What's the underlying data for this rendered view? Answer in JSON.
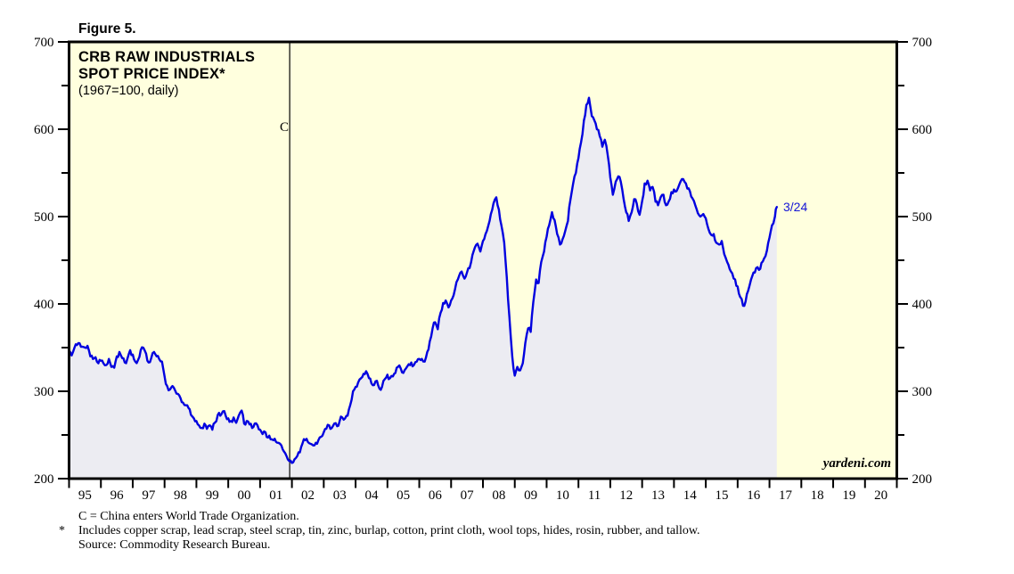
{
  "figure_label": "Figure 5.",
  "watermark": "yardeni.com",
  "footnotes": {
    "line1": "C = China enters World Trade Organization.",
    "line2_marker": "*",
    "line2": "Includes copper scrap, lead scrap, steel scrap, tin, zinc, burlap, cotton, print cloth, wool tops, hides, rosin, rubber, and tallow.",
    "line3": "Source: Commodity Research Bureau."
  },
  "colors": {
    "plot_bg": "#FFFFDE",
    "area_fill": "#ECECF2",
    "line": "#0202DF",
    "axis": "#000000",
    "end_label_text": "#1515D6"
  },
  "chart_data": {
    "type": "line",
    "title_lines": [
      "CRB RAW INDUSTRIALS",
      "SPOT PRICE INDEX*"
    ],
    "subtitle": "(1967=100, daily)",
    "ylim": [
      200,
      700
    ],
    "y_major_ticks": [
      200,
      300,
      400,
      500,
      600,
      700
    ],
    "y_minor_ticks": [
      250,
      350,
      450,
      550,
      650
    ],
    "x_axis": {
      "start": 1995,
      "end": 2021
    },
    "x_tick_labels": [
      "95",
      "96",
      "97",
      "98",
      "99",
      "00",
      "01",
      "02",
      "03",
      "04",
      "05",
      "06",
      "07",
      "08",
      "09",
      "10",
      "11",
      "12",
      "13",
      "14",
      "15",
      "16",
      "17",
      "18",
      "19",
      "20"
    ],
    "grid": false,
    "legend": "none",
    "annotation": {
      "label": "C",
      "year": 2001.93,
      "meaning": "China enters World Trade Organization"
    },
    "end_point": {
      "label": "3/24",
      "year": 2017.23,
      "value": 511
    },
    "series": [
      {
        "name": "CRB Raw Industrials Spot Price Index",
        "points": [
          [
            1995.0,
            347
          ],
          [
            1995.08,
            341
          ],
          [
            1995.17,
            350
          ],
          [
            1995.25,
            353
          ],
          [
            1995.33,
            355
          ],
          [
            1995.42,
            351
          ],
          [
            1995.5,
            350
          ],
          [
            1995.58,
            352
          ],
          [
            1995.67,
            340
          ],
          [
            1995.75,
            337
          ],
          [
            1995.83,
            339
          ],
          [
            1995.92,
            332
          ],
          [
            1996.0,
            335
          ],
          [
            1996.08,
            332
          ],
          [
            1996.17,
            330
          ],
          [
            1996.25,
            337
          ],
          [
            1996.33,
            328
          ],
          [
            1996.42,
            327
          ],
          [
            1996.5,
            340
          ],
          [
            1996.58,
            345
          ],
          [
            1996.67,
            338
          ],
          [
            1996.75,
            333
          ],
          [
            1996.83,
            337
          ],
          [
            1996.92,
            347
          ],
          [
            1997.0,
            342
          ],
          [
            1997.08,
            334
          ],
          [
            1997.17,
            336
          ],
          [
            1997.25,
            347
          ],
          [
            1997.33,
            350
          ],
          [
            1997.42,
            343
          ],
          [
            1997.5,
            333
          ],
          [
            1997.58,
            338
          ],
          [
            1997.67,
            345
          ],
          [
            1997.75,
            340
          ],
          [
            1997.83,
            337
          ],
          [
            1997.92,
            334
          ],
          [
            1998.0,
            317
          ],
          [
            1998.08,
            306
          ],
          [
            1998.17,
            302
          ],
          [
            1998.25,
            306
          ],
          [
            1998.33,
            301
          ],
          [
            1998.42,
            297
          ],
          [
            1998.5,
            292
          ],
          [
            1998.58,
            287
          ],
          [
            1998.67,
            284
          ],
          [
            1998.75,
            281
          ],
          [
            1998.83,
            273
          ],
          [
            1998.92,
            269
          ],
          [
            1999.0,
            266
          ],
          [
            1999.08,
            261
          ],
          [
            1999.17,
            258
          ],
          [
            1999.25,
            263
          ],
          [
            1999.33,
            257
          ],
          [
            1999.42,
            261
          ],
          [
            1999.5,
            256
          ],
          [
            1999.58,
            264
          ],
          [
            1999.67,
            273
          ],
          [
            1999.75,
            272
          ],
          [
            1999.83,
            277
          ],
          [
            1999.92,
            272
          ],
          [
            2000.0,
            269
          ],
          [
            2000.08,
            266
          ],
          [
            2000.17,
            270
          ],
          [
            2000.25,
            264
          ],
          [
            2000.33,
            272
          ],
          [
            2000.42,
            278
          ],
          [
            2000.5,
            263
          ],
          [
            2000.58,
            266
          ],
          [
            2000.67,
            262
          ],
          [
            2000.75,
            258
          ],
          [
            2000.83,
            263
          ],
          [
            2000.92,
            261
          ],
          [
            2001.0,
            256
          ],
          [
            2001.08,
            251
          ],
          [
            2001.17,
            253
          ],
          [
            2001.25,
            247
          ],
          [
            2001.33,
            245
          ],
          [
            2001.42,
            244
          ],
          [
            2001.5,
            242
          ],
          [
            2001.58,
            241
          ],
          [
            2001.67,
            238
          ],
          [
            2001.75,
            231
          ],
          [
            2001.83,
            226
          ],
          [
            2001.92,
            220
          ],
          [
            2002.0,
            218
          ],
          [
            2002.08,
            222
          ],
          [
            2002.17,
            226
          ],
          [
            2002.25,
            230
          ],
          [
            2002.33,
            240
          ],
          [
            2002.42,
            244
          ],
          [
            2002.5,
            242
          ],
          [
            2002.58,
            240
          ],
          [
            2002.67,
            238
          ],
          [
            2002.75,
            241
          ],
          [
            2002.83,
            244
          ],
          [
            2002.92,
            248
          ],
          [
            2003.0,
            253
          ],
          [
            2003.08,
            257
          ],
          [
            2003.17,
            261
          ],
          [
            2003.25,
            258
          ],
          [
            2003.33,
            263
          ],
          [
            2003.42,
            260
          ],
          [
            2003.5,
            266
          ],
          [
            2003.58,
            270
          ],
          [
            2003.67,
            269
          ],
          [
            2003.75,
            272
          ],
          [
            2003.83,
            284
          ],
          [
            2003.92,
            300
          ],
          [
            2004.0,
            305
          ],
          [
            2004.08,
            310
          ],
          [
            2004.17,
            315
          ],
          [
            2004.25,
            320
          ],
          [
            2004.33,
            323
          ],
          [
            2004.42,
            315
          ],
          [
            2004.5,
            309
          ],
          [
            2004.58,
            307
          ],
          [
            2004.67,
            312
          ],
          [
            2004.75,
            303
          ],
          [
            2004.83,
            305
          ],
          [
            2004.92,
            314
          ],
          [
            2005.0,
            319
          ],
          [
            2005.08,
            315
          ],
          [
            2005.17,
            317
          ],
          [
            2005.25,
            321
          ],
          [
            2005.33,
            328
          ],
          [
            2005.42,
            326
          ],
          [
            2005.5,
            321
          ],
          [
            2005.58,
            326
          ],
          [
            2005.67,
            331
          ],
          [
            2005.75,
            333
          ],
          [
            2005.83,
            330
          ],
          [
            2005.92,
            334
          ],
          [
            2006.0,
            337
          ],
          [
            2006.08,
            337
          ],
          [
            2006.17,
            334
          ],
          [
            2006.25,
            345
          ],
          [
            2006.33,
            357
          ],
          [
            2006.42,
            372
          ],
          [
            2006.5,
            379
          ],
          [
            2006.58,
            371
          ],
          [
            2006.67,
            390
          ],
          [
            2006.75,
            401
          ],
          [
            2006.83,
            404
          ],
          [
            2006.92,
            396
          ],
          [
            2007.0,
            404
          ],
          [
            2007.08,
            410
          ],
          [
            2007.17,
            425
          ],
          [
            2007.25,
            432
          ],
          [
            2007.33,
            437
          ],
          [
            2007.42,
            429
          ],
          [
            2007.5,
            436
          ],
          [
            2007.58,
            441
          ],
          [
            2007.67,
            456
          ],
          [
            2007.75,
            465
          ],
          [
            2007.83,
            469
          ],
          [
            2007.92,
            460
          ],
          [
            2008.0,
            472
          ],
          [
            2008.08,
            480
          ],
          [
            2008.17,
            490
          ],
          [
            2008.25,
            503
          ],
          [
            2008.33,
            515
          ],
          [
            2008.42,
            522
          ],
          [
            2008.5,
            508
          ],
          [
            2008.58,
            490
          ],
          [
            2008.67,
            470
          ],
          [
            2008.75,
            430
          ],
          [
            2008.83,
            385
          ],
          [
            2008.92,
            340
          ],
          [
            2009.0,
            318
          ],
          [
            2009.08,
            328
          ],
          [
            2009.17,
            324
          ],
          [
            2009.25,
            332
          ],
          [
            2009.33,
            355
          ],
          [
            2009.42,
            372
          ],
          [
            2009.5,
            368
          ],
          [
            2009.58,
            402
          ],
          [
            2009.67,
            428
          ],
          [
            2009.75,
            424
          ],
          [
            2009.83,
            448
          ],
          [
            2009.92,
            460
          ],
          [
            2010.0,
            477
          ],
          [
            2010.08,
            490
          ],
          [
            2010.17,
            505
          ],
          [
            2010.25,
            496
          ],
          [
            2010.33,
            480
          ],
          [
            2010.42,
            468
          ],
          [
            2010.5,
            474
          ],
          [
            2010.58,
            483
          ],
          [
            2010.67,
            495
          ],
          [
            2010.75,
            520
          ],
          [
            2010.83,
            537
          ],
          [
            2010.92,
            550
          ],
          [
            2011.0,
            567
          ],
          [
            2011.08,
            585
          ],
          [
            2011.17,
            610
          ],
          [
            2011.25,
            628
          ],
          [
            2011.33,
            636
          ],
          [
            2011.42,
            615
          ],
          [
            2011.5,
            610
          ],
          [
            2011.58,
            600
          ],
          [
            2011.67,
            592
          ],
          [
            2011.75,
            580
          ],
          [
            2011.83,
            588
          ],
          [
            2011.92,
            570
          ],
          [
            2012.0,
            545
          ],
          [
            2012.08,
            525
          ],
          [
            2012.17,
            540
          ],
          [
            2012.25,
            546
          ],
          [
            2012.33,
            540
          ],
          [
            2012.42,
            520
          ],
          [
            2012.5,
            505
          ],
          [
            2012.58,
            495
          ],
          [
            2012.67,
            505
          ],
          [
            2012.75,
            520
          ],
          [
            2012.83,
            515
          ],
          [
            2012.92,
            502
          ],
          [
            2013.0,
            518
          ],
          [
            2013.08,
            538
          ],
          [
            2013.17,
            541
          ],
          [
            2013.25,
            530
          ],
          [
            2013.33,
            534
          ],
          [
            2013.42,
            517
          ],
          [
            2013.5,
            513
          ],
          [
            2013.58,
            522
          ],
          [
            2013.67,
            525
          ],
          [
            2013.75,
            513
          ],
          [
            2013.83,
            517
          ],
          [
            2013.92,
            528
          ],
          [
            2014.0,
            531
          ],
          [
            2014.08,
            529
          ],
          [
            2014.17,
            537
          ],
          [
            2014.25,
            543
          ],
          [
            2014.33,
            540
          ],
          [
            2014.42,
            532
          ],
          [
            2014.5,
            529
          ],
          [
            2014.58,
            521
          ],
          [
            2014.67,
            513
          ],
          [
            2014.75,
            504
          ],
          [
            2014.83,
            500
          ],
          [
            2014.92,
            503
          ],
          [
            2015.0,
            498
          ],
          [
            2015.08,
            486
          ],
          [
            2015.17,
            479
          ],
          [
            2015.25,
            480
          ],
          [
            2015.33,
            470
          ],
          [
            2015.42,
            468
          ],
          [
            2015.5,
            472
          ],
          [
            2015.58,
            457
          ],
          [
            2015.67,
            448
          ],
          [
            2015.75,
            440
          ],
          [
            2015.83,
            435
          ],
          [
            2015.92,
            428
          ],
          [
            2016.0,
            420
          ],
          [
            2016.08,
            408
          ],
          [
            2016.17,
            398
          ],
          [
            2016.25,
            403
          ],
          [
            2016.33,
            415
          ],
          [
            2016.42,
            428
          ],
          [
            2016.5,
            436
          ],
          [
            2016.58,
            441
          ],
          [
            2016.67,
            439
          ],
          [
            2016.75,
            447
          ],
          [
            2016.83,
            452
          ],
          [
            2016.92,
            461
          ],
          [
            2017.0,
            476
          ],
          [
            2017.08,
            490
          ],
          [
            2017.17,
            500
          ],
          [
            2017.23,
            511
          ]
        ]
      }
    ]
  }
}
